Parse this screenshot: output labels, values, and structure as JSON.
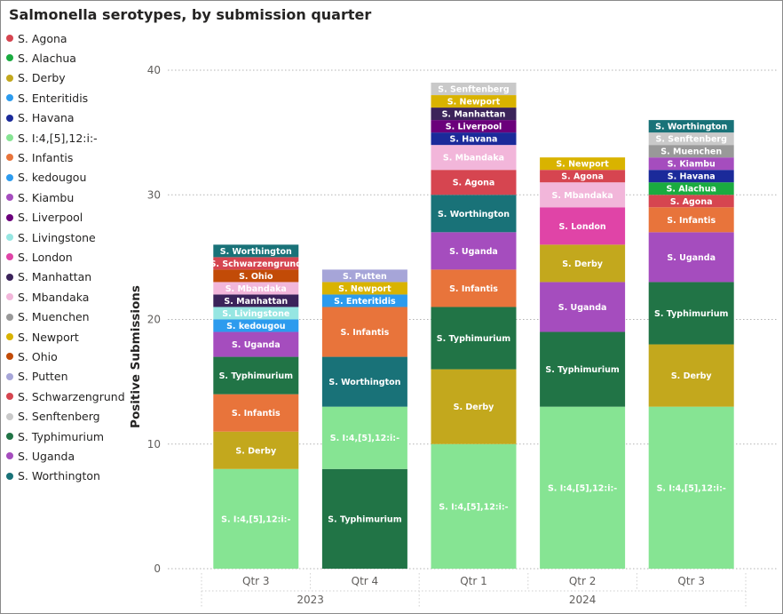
{
  "chart_data": {
    "type": "bar",
    "stacked": true,
    "title": "Salmonella serotypes, by submission quarter",
    "xlabel": "",
    "ylabel": "Positive Submissions",
    "ylim": [
      0,
      40
    ],
    "yticks": [
      0,
      10,
      20,
      30,
      40
    ],
    "grid": true,
    "legend_position": "left",
    "categories": [
      "Qtr 3",
      "Qtr 4",
      "Qtr 1",
      "Qtr 2",
      "Qtr 3"
    ],
    "year_groups": [
      {
        "label": "2023",
        "span": [
          0,
          1
        ]
      },
      {
        "label": "2024",
        "span": [
          2,
          4
        ]
      }
    ],
    "series": [
      {
        "name": "S. Agona",
        "color": "#D64550",
        "values": [
          0,
          0,
          2,
          1,
          1
        ]
      },
      {
        "name": "S. Alachua",
        "color": "#1AAB40",
        "values": [
          0,
          0,
          0,
          0,
          1
        ]
      },
      {
        "name": "S. Derby",
        "color": "#C3A81D",
        "values": [
          3,
          0,
          6,
          3,
          5
        ]
      },
      {
        "name": "S. Enteritidis",
        "color": "#2C9BEE",
        "values": [
          0,
          1,
          0,
          0,
          0
        ]
      },
      {
        "name": "S. Havana",
        "color": "#1B2A9A",
        "values": [
          0,
          0,
          1,
          0,
          1
        ]
      },
      {
        "name": "S. I:4,[5],12:i:-",
        "color": "#86E493",
        "values": [
          8,
          5,
          10,
          13,
          13
        ]
      },
      {
        "name": "S. Infantis",
        "color": "#E8743B",
        "values": [
          3,
          4,
          3,
          0,
          2
        ]
      },
      {
        "name": "S. kedougou",
        "color": "#2C9BEE",
        "values": [
          1,
          0,
          0,
          0,
          0
        ]
      },
      {
        "name": "S. Kiambu",
        "color": "#A54DBE",
        "values": [
          0,
          0,
          0,
          0,
          1
        ]
      },
      {
        "name": "S. Liverpool",
        "color": "#6B007B",
        "values": [
          0,
          0,
          1,
          0,
          0
        ]
      },
      {
        "name": "S. Livingstone",
        "color": "#96E6E2",
        "values": [
          1,
          0,
          0,
          0,
          0
        ]
      },
      {
        "name": "S. London",
        "color": "#E044A7",
        "values": [
          0,
          0,
          0,
          3,
          0
        ]
      },
      {
        "name": "S. Manhattan",
        "color": "#3B235A",
        "values": [
          1,
          0,
          1,
          0,
          0
        ]
      },
      {
        "name": "S. Mbandaka",
        "color": "#F2B6DA",
        "values": [
          1,
          0,
          2,
          2,
          0
        ]
      },
      {
        "name": "S. Muenchen",
        "color": "#999999",
        "values": [
          0,
          0,
          0,
          0,
          1
        ]
      },
      {
        "name": "S. Newport",
        "color": "#D9B300",
        "values": [
          0,
          1,
          1,
          1,
          0
        ]
      },
      {
        "name": "S. Ohio",
        "color": "#C24B07",
        "values": [
          1,
          0,
          0,
          0,
          0
        ]
      },
      {
        "name": "S. Putten",
        "color": "#A6A5D8",
        "values": [
          0,
          1,
          0,
          0,
          0
        ]
      },
      {
        "name": "S. Schwarzengrund",
        "color": "#D64550",
        "values": [
          1,
          0,
          0,
          0,
          0
        ]
      },
      {
        "name": "S. Senftenberg",
        "color": "#C9C9C9",
        "values": [
          0,
          0,
          1,
          0,
          1
        ]
      },
      {
        "name": "S. Typhimurium",
        "color": "#217446",
        "values": [
          3,
          8,
          5,
          6,
          5
        ]
      },
      {
        "name": "S. Uganda",
        "color": "#A54DBE",
        "values": [
          2,
          0,
          3,
          4,
          4
        ]
      },
      {
        "name": "S. Worthington",
        "color": "#197278",
        "values": [
          1,
          4,
          3,
          0,
          1
        ]
      }
    ],
    "stack_order": [
      [
        "S. I:4,[5],12:i:-",
        "S. Derby",
        "S. Infantis",
        "S. Typhimurium",
        "S. Uganda",
        "S. kedougou",
        "S. Livingstone",
        "S. Manhattan",
        "S. Mbandaka",
        "S. Ohio",
        "S. Schwarzengrund",
        "S. Worthington"
      ],
      [
        "S. Typhimurium",
        "S. I:4,[5],12:i:-",
        "S. Worthington",
        "S. Infantis",
        "S. Enteritidis",
        "S. Newport",
        "S. Putten"
      ],
      [
        "S. I:4,[5],12:i:-",
        "S. Derby",
        "S. Typhimurium",
        "S. Infantis",
        "S. Uganda",
        "S. Worthington",
        "S. Agona",
        "S. Mbandaka",
        "S. Havana",
        "S. Liverpool",
        "S. Manhattan",
        "S. Newport",
        "S. Senftenberg"
      ],
      [
        "S. I:4,[5],12:i:-",
        "S. Typhimurium",
        "S. Uganda",
        "S. Derby",
        "S. London",
        "S. Mbandaka",
        "S. Agona",
        "S. Newport"
      ],
      [
        "S. I:4,[5],12:i:-",
        "S. Derby",
        "S. Typhimurium",
        "S. Uganda",
        "S. Infantis",
        "S. Agona",
        "S. Alachua",
        "S. Havana",
        "S. Kiambu",
        "S. Muenchen",
        "S. Senftenberg",
        "S. Worthington"
      ]
    ]
  }
}
